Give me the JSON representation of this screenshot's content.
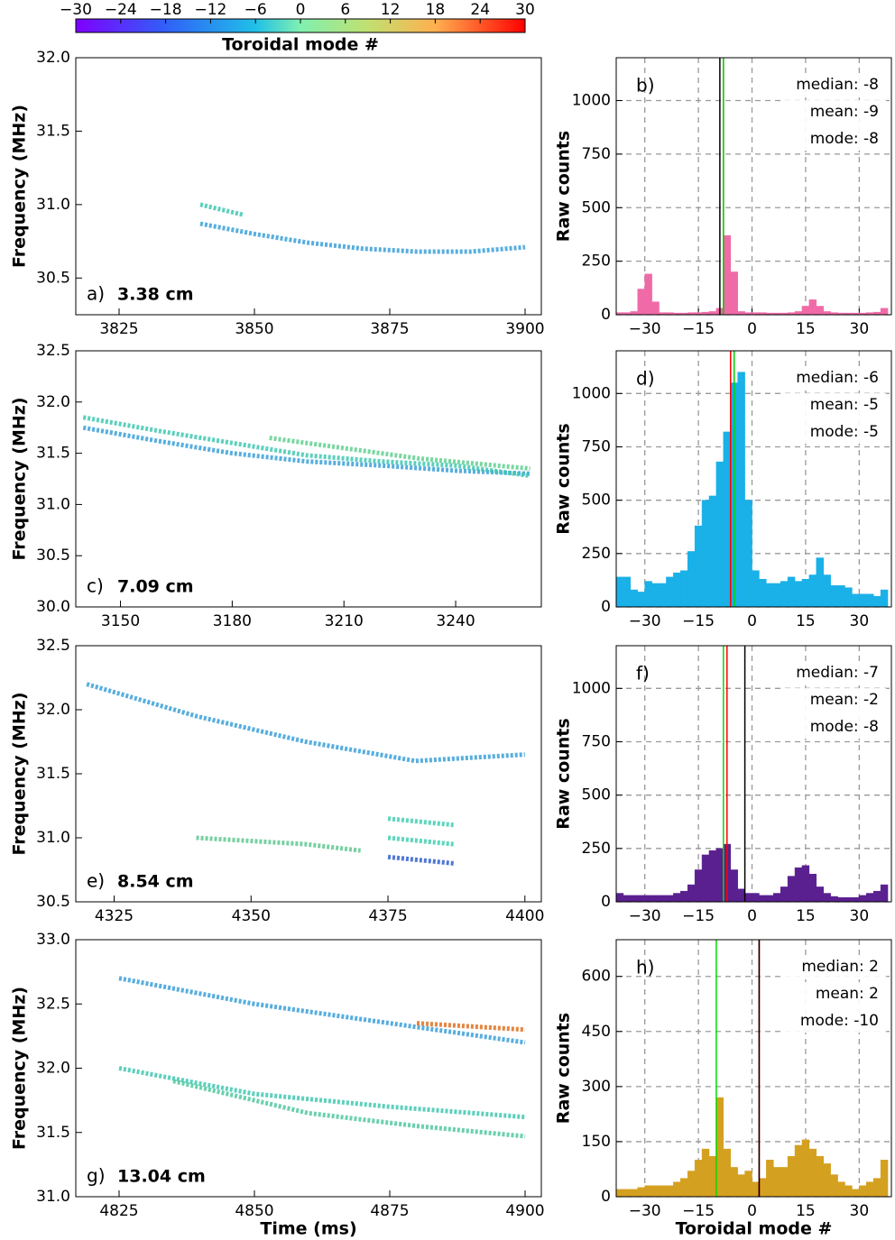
{
  "chart_data": [
    {
      "type": "colorbar",
      "label": "Toroidal mode #",
      "xlim": [
        -30,
        30
      ],
      "xticks": [
        {
          "value": -30,
          "label": "−30"
        },
        {
          "value": -24,
          "label": "−24"
        },
        {
          "value": -18,
          "label": "−18"
        },
        {
          "value": -12,
          "label": "−12"
        },
        {
          "value": -6,
          "label": "−6"
        },
        0,
        6,
        12,
        18,
        24,
        30
      ]
    },
    {
      "type": "spectrogram",
      "panel": "a)",
      "distance": "3.38 cm",
      "distance_color": "#f06aa8",
      "ylabel": "Frequency (MHz)",
      "xlim": [
        3817,
        3903
      ],
      "xticks": [
        3825,
        3850,
        3875,
        3900
      ],
      "ylim": [
        30.25,
        32.0
      ],
      "yticks": [
        30.5,
        {
          "value": 31.0,
          "label": "31.0"
        },
        31.5,
        {
          "value": 32.0,
          "label": "32.0"
        }
      ],
      "series": [
        {
          "color": "#3aa0d8",
          "x": [
            3840,
            3850,
            3860,
            3870,
            3880,
            3890,
            3900
          ],
          "values": [
            30.87,
            30.8,
            30.74,
            30.7,
            30.68,
            30.68,
            30.71
          ]
        },
        {
          "color": "#40c8b0",
          "x": [
            3840,
            3848
          ],
          "values": [
            31.0,
            30.93
          ]
        }
      ]
    },
    {
      "type": "spectrogram",
      "panel": "c)",
      "distance": "7.09 cm",
      "distance_color": "#1ab0e8",
      "ylabel": "Frequency (MHz)",
      "xlim": [
        3138,
        3263
      ],
      "xticks": [
        3150,
        3180,
        3210,
        3240
      ],
      "ylim": [
        30.0,
        32.5
      ],
      "yticks": [
        {
          "value": 30.0,
          "label": "30.0"
        },
        30.5,
        {
          "value": 31.0,
          "label": "31.0"
        },
        31.5,
        {
          "value": 32.0,
          "label": "32.0"
        },
        32.5
      ],
      "series": [
        {
          "color": "#3aa0d8",
          "x": [
            3140,
            3160,
            3180,
            3200,
            3220,
            3240,
            3260
          ],
          "values": [
            31.75,
            31.62,
            31.5,
            31.42,
            31.38,
            31.33,
            31.3
          ]
        },
        {
          "color": "#40c8b0",
          "x": [
            3140,
            3160,
            3180,
            3200,
            3220,
            3240,
            3260
          ],
          "values": [
            31.85,
            31.72,
            31.6,
            31.48,
            31.42,
            31.38,
            31.28
          ]
        },
        {
          "color": "#60d090",
          "x": [
            3190,
            3210,
            3230,
            3260
          ],
          "values": [
            31.65,
            31.55,
            31.45,
            31.35
          ]
        }
      ]
    },
    {
      "type": "spectrogram",
      "panel": "e)",
      "distance": "8.54 cm",
      "distance_color": "#5a2090",
      "ylabel": "Frequency (MHz)",
      "xlim": [
        4318,
        4403
      ],
      "xticks": [
        4325,
        4350,
        4375,
        4400
      ],
      "ylim": [
        30.5,
        32.5
      ],
      "yticks": [
        30.5,
        {
          "value": 31.0,
          "label": "31.0"
        },
        31.5,
        {
          "value": 32.0,
          "label": "32.0"
        },
        32.5
      ],
      "series": [
        {
          "color": "#3aa0d8",
          "x": [
            4320,
            4340,
            4360,
            4380,
            4400
          ],
          "values": [
            32.2,
            31.95,
            31.75,
            31.6,
            31.65
          ]
        },
        {
          "color": "#40d0b0",
          "x": [
            4375,
            4387
          ],
          "values": [
            31.15,
            31.1
          ]
        },
        {
          "color": "#40d0b0",
          "x": [
            4375,
            4387
          ],
          "values": [
            31.0,
            30.95
          ]
        },
        {
          "color": "#3060d0",
          "x": [
            4375,
            4387
          ],
          "values": [
            30.85,
            30.8
          ]
        },
        {
          "color": "#60c890",
          "x": [
            4340,
            4360,
            4370
          ],
          "values": [
            31.0,
            30.95,
            30.9
          ]
        }
      ]
    },
    {
      "type": "spectrogram",
      "panel": "g)",
      "distance": "13.04 cm",
      "distance_color": "#d4a020",
      "ylabel": "Frequency (MHz)",
      "xlabel": "Time (ms)",
      "xlim": [
        4817,
        4903
      ],
      "xticks": [
        4825,
        4850,
        4875,
        4900
      ],
      "ylim": [
        31.0,
        33.0
      ],
      "yticks": [
        {
          "value": 31.0,
          "label": "31.0"
        },
        31.5,
        {
          "value": 32.0,
          "label": "32.0"
        },
        32.5,
        {
          "value": 33.0,
          "label": "33.0"
        }
      ],
      "series": [
        {
          "color": "#3aa0d8",
          "x": [
            4825,
            4850,
            4875,
            4900
          ],
          "values": [
            32.7,
            32.5,
            32.35,
            32.2
          ]
        },
        {
          "color": "#40c8b0",
          "x": [
            4825,
            4850,
            4875,
            4900
          ],
          "values": [
            32.0,
            31.8,
            31.7,
            31.62
          ]
        },
        {
          "color": "#50c8a0",
          "x": [
            4835,
            4860,
            4880,
            4900
          ],
          "values": [
            31.9,
            31.65,
            31.55,
            31.47
          ]
        },
        {
          "color": "#e07020",
          "x": [
            4880,
            4900
          ],
          "values": [
            32.35,
            32.3
          ]
        }
      ]
    },
    {
      "type": "histogram",
      "panel": "b)",
      "color": "#f06aa8",
      "ylabel": "Raw counts",
      "bins": [
        -38,
        -36,
        -34,
        -32,
        -30,
        -28,
        -26,
        -24,
        -22,
        -20,
        -18,
        -16,
        -14,
        -12,
        -10,
        -8,
        -6,
        -4,
        -2,
        0,
        2,
        4,
        6,
        8,
        10,
        12,
        14,
        16,
        18,
        20,
        22,
        24,
        26,
        28,
        30,
        32,
        34,
        36,
        38
      ],
      "counts": [
        10,
        10,
        15,
        120,
        190,
        60,
        10,
        10,
        8,
        8,
        10,
        10,
        12,
        15,
        30,
        370,
        200,
        15,
        10,
        10,
        10,
        8,
        8,
        8,
        10,
        15,
        40,
        70,
        40,
        15,
        10,
        8,
        8,
        8,
        8,
        10,
        12,
        30
      ],
      "xlim": [
        -38,
        39
      ],
      "xticks": [
        {
          "value": -30,
          "label": "−30"
        },
        {
          "value": -15,
          "label": "−15"
        },
        0,
        15,
        30
      ],
      "ylim": [
        0,
        1200
      ],
      "yticks": [
        0,
        250,
        500,
        750,
        1000
      ],
      "grid": true,
      "stats": [
        {
          "label": "median: -8",
          "value": -8,
          "color": "#ff0000"
        },
        {
          "label": "mean: -9",
          "value": -9,
          "color": "#000000"
        },
        {
          "label": "mode: -8",
          "value": -8,
          "color": "#00dd00"
        }
      ]
    },
    {
      "type": "histogram",
      "panel": "d)",
      "color": "#1ab0e8",
      "ylabel": "Raw counts",
      "bins": [
        -38,
        -36,
        -34,
        -32,
        -30,
        -28,
        -26,
        -24,
        -22,
        -20,
        -18,
        -16,
        -14,
        -12,
        -10,
        -8,
        -6,
        -4,
        -2,
        0,
        2,
        4,
        6,
        8,
        10,
        12,
        14,
        16,
        18,
        20,
        22,
        24,
        26,
        28,
        30,
        32,
        34,
        36,
        38
      ],
      "counts": [
        140,
        140,
        80,
        70,
        120,
        110,
        110,
        140,
        160,
        170,
        260,
        380,
        500,
        520,
        680,
        820,
        1050,
        1100,
        500,
        170,
        130,
        110,
        110,
        120,
        140,
        120,
        130,
        150,
        230,
        150,
        100,
        100,
        90,
        60,
        60,
        60,
        50,
        80
      ],
      "xlim": [
        -38,
        39
      ],
      "xticks": [
        {
          "value": -30,
          "label": "−30"
        },
        {
          "value": -15,
          "label": "−15"
        },
        0,
        15,
        30
      ],
      "ylim": [
        0,
        1200
      ],
      "yticks": [
        0,
        250,
        500,
        750,
        1000
      ],
      "grid": true,
      "stats": [
        {
          "label": "median: -6",
          "value": -6,
          "color": "#ff0000"
        },
        {
          "label": "mean: -5",
          "value": -5,
          "color": "#000000"
        },
        {
          "label": "mode: -5",
          "value": -5,
          "color": "#00dd00"
        }
      ]
    },
    {
      "type": "histogram",
      "panel": "f)",
      "color": "#5a2090",
      "ylabel": "Raw counts",
      "bins": [
        -38,
        -36,
        -34,
        -32,
        -30,
        -28,
        -26,
        -24,
        -22,
        -20,
        -18,
        -16,
        -14,
        -12,
        -10,
        -8,
        -6,
        -4,
        -2,
        0,
        2,
        4,
        6,
        8,
        10,
        12,
        14,
        16,
        18,
        20,
        22,
        24,
        26,
        28,
        30,
        32,
        34,
        36,
        38
      ],
      "counts": [
        40,
        30,
        30,
        30,
        30,
        30,
        30,
        30,
        40,
        50,
        80,
        150,
        220,
        240,
        250,
        270,
        150,
        60,
        40,
        40,
        30,
        30,
        40,
        70,
        120,
        160,
        170,
        130,
        70,
        40,
        25,
        20,
        20,
        20,
        30,
        40,
        50,
        80
      ],
      "xlim": [
        -38,
        39
      ],
      "xticks": [
        {
          "value": -30,
          "label": "−30"
        },
        {
          "value": -15,
          "label": "−15"
        },
        0,
        15,
        30
      ],
      "ylim": [
        0,
        1200
      ],
      "yticks": [
        0,
        250,
        500,
        750,
        1000
      ],
      "grid": true,
      "stats": [
        {
          "label": "median: -7",
          "value": -7,
          "color": "#ff0000"
        },
        {
          "label": "mean: -2",
          "value": -2,
          "color": "#000000"
        },
        {
          "label": "mode: -8",
          "value": -8,
          "color": "#00dd00"
        }
      ]
    },
    {
      "type": "histogram",
      "panel": "h)",
      "color": "#d4a020",
      "ylabel": "Raw counts",
      "xlabel": "Toroidal mode #",
      "bins": [
        -38,
        -36,
        -34,
        -32,
        -30,
        -28,
        -26,
        -24,
        -22,
        -20,
        -18,
        -16,
        -14,
        -12,
        -10,
        -8,
        -6,
        -4,
        -2,
        0,
        2,
        4,
        6,
        8,
        10,
        12,
        14,
        16,
        18,
        20,
        22,
        24,
        26,
        28,
        30,
        32,
        34,
        36,
        38
      ],
      "counts": [
        20,
        20,
        20,
        25,
        30,
        30,
        30,
        30,
        40,
        50,
        70,
        100,
        130,
        110,
        270,
        130,
        80,
        60,
        70,
        40,
        50,
        100,
        80,
        80,
        110,
        140,
        155,
        130,
        110,
        90,
        60,
        40,
        30,
        20,
        30,
        40,
        50,
        100
      ],
      "xlim": [
        -38,
        39
      ],
      "xticks": [
        {
          "value": -30,
          "label": "−30"
        },
        {
          "value": -15,
          "label": "−15"
        },
        0,
        15,
        30
      ],
      "ylim": [
        0,
        700
      ],
      "yticks": [
        0,
        150,
        300,
        450,
        600
      ],
      "grid": true,
      "stats": [
        {
          "label": "median: 2",
          "value": 2,
          "color": "#ff0000"
        },
        {
          "label": "mean: 2",
          "value": 2,
          "color": "#000000"
        },
        {
          "label": "mode: -10",
          "value": -10,
          "color": "#00dd00"
        }
      ]
    }
  ]
}
